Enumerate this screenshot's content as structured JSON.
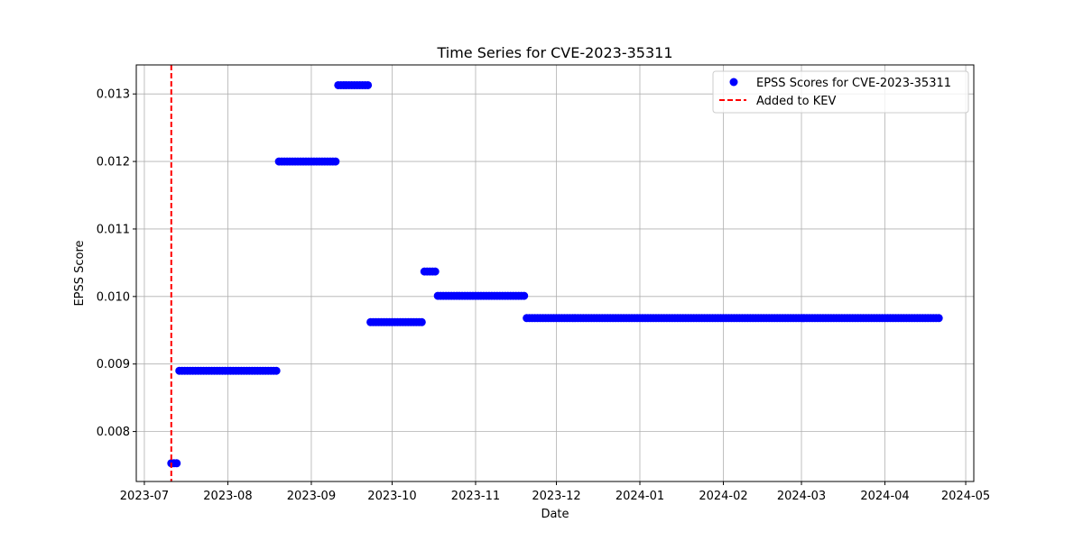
{
  "chart_data": {
    "type": "scatter",
    "title": "Time Series for CVE-2023-35311",
    "xlabel": "Date",
    "ylabel": "EPSS Score",
    "grid": true,
    "legend_position": "top-right",
    "xlim": [
      "2023-06-28",
      "2024-05-04"
    ],
    "ylim": [
      0.00726,
      0.01343
    ],
    "x_ticks": [
      "2023-07",
      "2023-08",
      "2023-09",
      "2023-10",
      "2023-11",
      "2023-12",
      "2024-01",
      "2024-02",
      "2024-03",
      "2024-04",
      "2024-05"
    ],
    "y_ticks": [
      "0.008",
      "0.009",
      "0.010",
      "0.011",
      "0.012",
      "0.013"
    ],
    "series": [
      {
        "name": "EPSS Scores for CVE-2023-35311",
        "marker": "circle",
        "color": "#0000ff",
        "segments": [
          {
            "start": "2023-07-11",
            "end": "2023-07-13",
            "value": 0.00753
          },
          {
            "start": "2023-07-14",
            "end": "2023-08-19",
            "value": 0.0089
          },
          {
            "start": "2023-08-20",
            "end": "2023-09-10",
            "value": 0.012
          },
          {
            "start": "2023-09-11",
            "end": "2023-09-22",
            "value": 0.01313
          },
          {
            "start": "2023-09-23",
            "end": "2023-10-12",
            "value": 0.00962
          },
          {
            "start": "2023-10-13",
            "end": "2023-10-17",
            "value": 0.01037
          },
          {
            "start": "2023-10-18",
            "end": "2023-11-19",
            "value": 0.01001
          },
          {
            "start": "2023-11-20",
            "end": "2024-04-21",
            "value": 0.00968
          }
        ]
      }
    ],
    "kev_line": {
      "name": "Added to KEV",
      "date": "2023-07-11",
      "color": "#ff0000",
      "style": "dashed"
    }
  }
}
